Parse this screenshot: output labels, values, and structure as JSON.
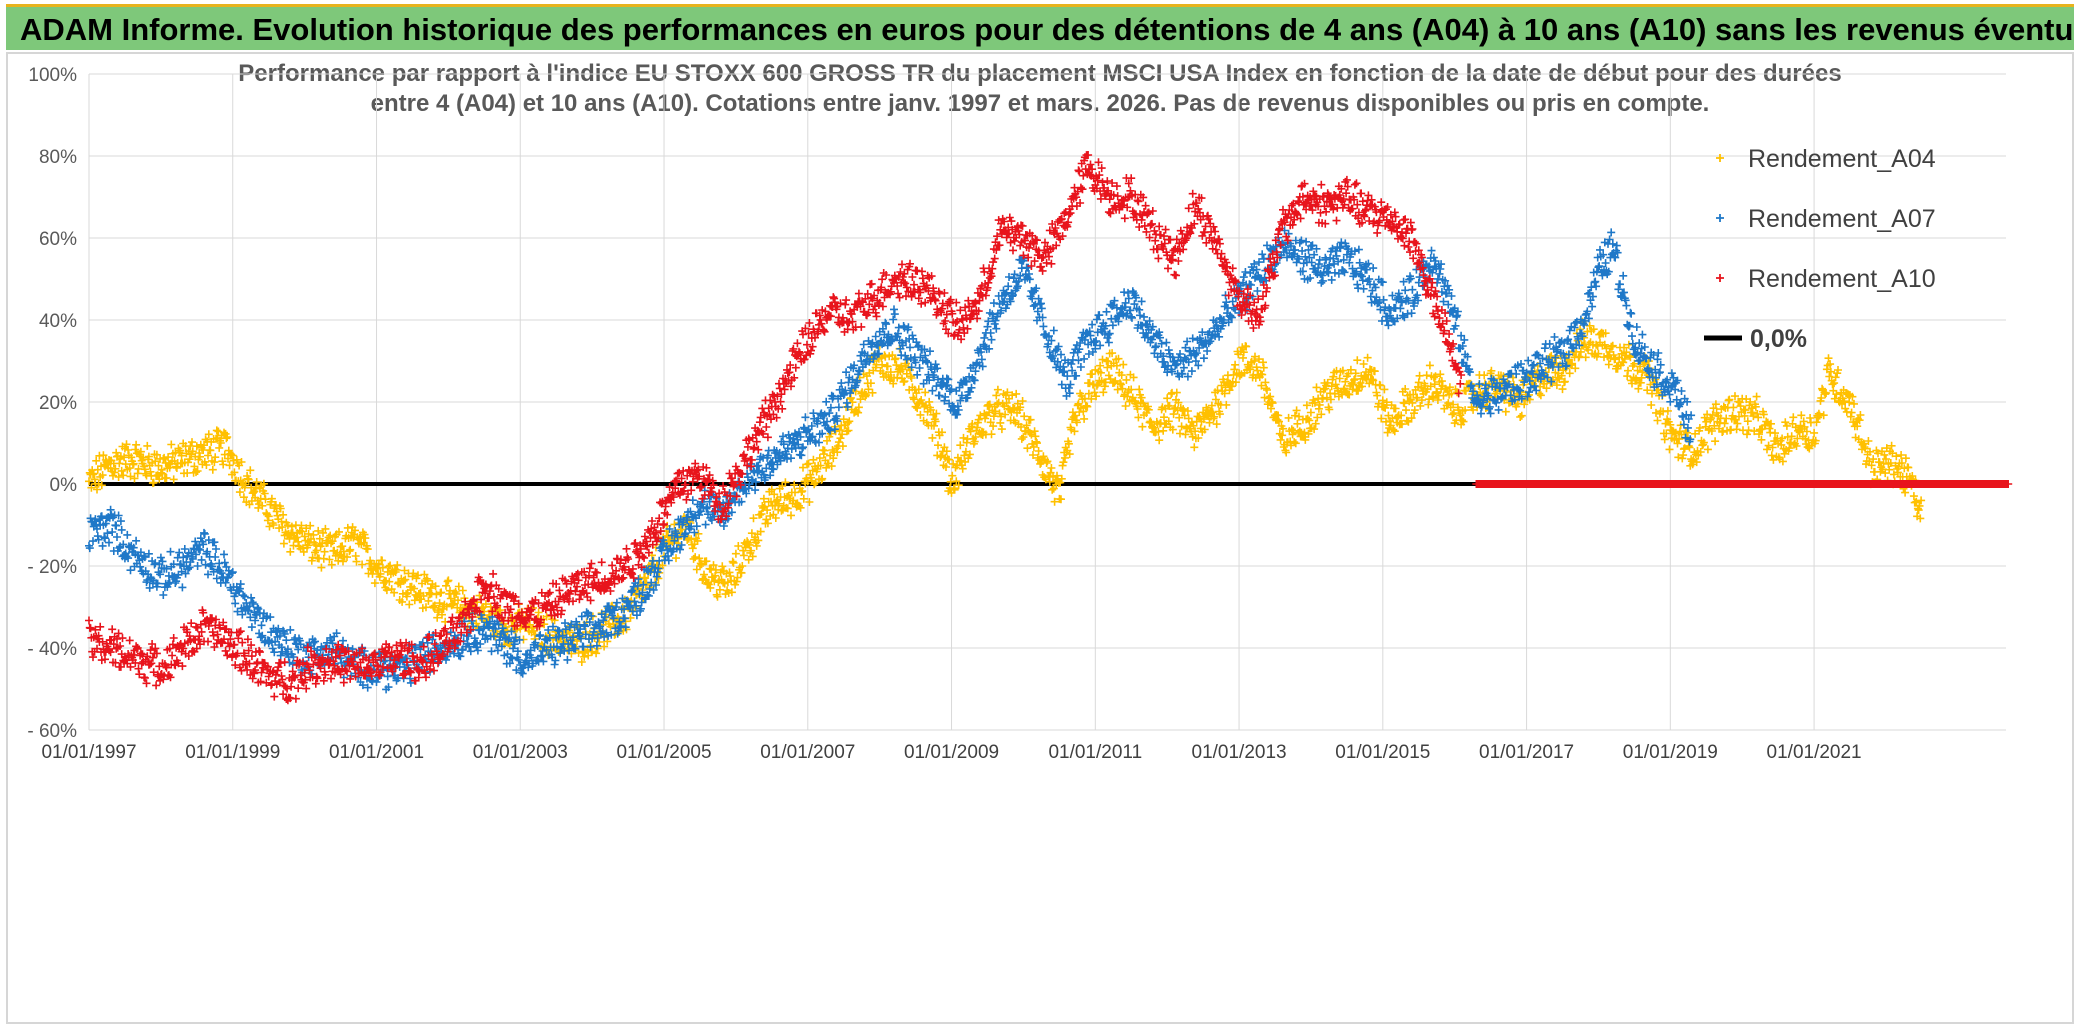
{
  "banner": {
    "title": "ADAM Informe. Evolution historique des performances en euros pour des détentions de 4 ans (A04) à 10 ans (A10) sans les revenus éventuels"
  },
  "colors": {
    "banner_bg": "#7ec87a",
    "a04": "#ffc000",
    "a07": "#1f78c8",
    "a10": "#e8141c",
    "zero": "#000000",
    "grid": "#d9d9d9"
  },
  "chart_data": {
    "type": "scatter",
    "title_lines": [
      "Performance par rapport à l'indice EU STOXX 600 GROSS TR  du placement MSCI USA Index en fonction de la date de début pour des durées",
      "entre 4 (A04) et 10 ans (A10). Cotations entre janv. 1997 et mars. 2026. Pas de revenus disponibles ou pris en compte."
    ],
    "xlim": [
      "1997-01-01",
      "2023-09-01"
    ],
    "ylim": [
      -60,
      100
    ],
    "y_ticks": [
      "- 60%",
      "- 40%",
      "- 20%",
      "0%",
      "20%",
      "40%",
      "60%",
      "80%",
      "100%"
    ],
    "y_tick_values": [
      -60,
      -40,
      -20,
      0,
      20,
      40,
      60,
      80,
      100
    ],
    "x_ticks": [
      "01/01/1997",
      "01/01/1999",
      "01/01/2001",
      "01/01/2003",
      "01/01/2005",
      "01/01/2007",
      "01/01/2009",
      "01/01/2011",
      "01/01/2013",
      "01/01/2015",
      "01/01/2017",
      "01/01/2019",
      "01/01/2021"
    ],
    "x_tick_years": [
      1997,
      1999,
      2001,
      2003,
      2005,
      2007,
      2009,
      2011,
      2013,
      2015,
      2017,
      2019,
      2021
    ],
    "grid": true,
    "legend_position": "top-right",
    "series": [
      {
        "name": "Rendement_A04",
        "marker": "+",
        "color_key": "a04",
        "x": [
          1997.0,
          1997.3,
          1997.6,
          1998.0,
          1998.5,
          1998.9,
          1999.2,
          1999.5,
          1999.8,
          2000.1,
          2000.4,
          2000.7,
          2001.0,
          2001.3,
          2001.6,
          2001.9,
          2002.2,
          2002.5,
          2002.8,
          2003.1,
          2003.4,
          2003.8,
          2004.1,
          2004.4,
          2004.7,
          2005.0,
          2005.3,
          2005.6,
          2005.9,
          2006.2,
          2006.5,
          2006.8,
          2007.1,
          2007.4,
          2007.7,
          2008.0,
          2008.3,
          2008.6,
          2008.9,
          2009.0,
          2009.3,
          2009.6,
          2009.9,
          2010.2,
          2010.5,
          2010.7,
          2010.9,
          2011.2,
          2011.5,
          2011.8,
          2012.1,
          2012.4,
          2012.7,
          2013.0,
          2013.3,
          2013.6,
          2013.9,
          2014.2,
          2014.5,
          2014.8,
          2015.1,
          2015.4,
          2015.7,
          2016.0,
          2016.3,
          2016.6,
          2016.9,
          2017.2,
          2017.5,
          2017.8,
          2018.1,
          2018.4,
          2018.7,
          2019.0,
          2019.3,
          2019.6,
          2019.9,
          2020.2,
          2020.5,
          2020.8,
          2021.0,
          2021.2,
          2021.5,
          2021.8,
          2022.1,
          2022.3,
          2022.5
        ],
        "y": [
          0,
          5,
          6,
          4,
          7,
          9,
          0,
          -6,
          -12,
          -15,
          -17,
          -14,
          -20,
          -23,
          -26,
          -28,
          -30,
          -32,
          -35,
          -34,
          -37,
          -39,
          -36,
          -33,
          -26,
          -16,
          -10,
          -22,
          -25,
          -14,
          -5,
          -3,
          2,
          10,
          22,
          30,
          28,
          20,
          8,
          0,
          12,
          18,
          18,
          8,
          -3,
          15,
          22,
          28,
          22,
          14,
          18,
          12,
          20,
          30,
          28,
          10,
          15,
          22,
          25,
          28,
          15,
          20,
          25,
          18,
          22,
          24,
          20,
          26,
          28,
          35,
          34,
          30,
          26,
          12,
          8,
          15,
          18,
          16,
          8,
          14,
          12,
          27,
          20,
          4,
          5,
          2,
          -8
        ]
      },
      {
        "name": "Rendement_A07",
        "marker": "+",
        "color_key": "a07",
        "x": [
          1997.0,
          1997.3,
          1997.6,
          1998.0,
          1998.3,
          1998.6,
          1998.9,
          1999.2,
          1999.5,
          1999.8,
          2000.1,
          2000.4,
          2000.7,
          2001.0,
          2001.3,
          2001.6,
          2001.9,
          2002.2,
          2002.5,
          2002.8,
          2003.1,
          2003.4,
          2003.7,
          2004.0,
          2004.3,
          2004.6,
          2004.9,
          2005.2,
          2005.5,
          2005.8,
          2006.1,
          2006.4,
          2006.7,
          2007.0,
          2007.3,
          2007.6,
          2007.9,
          2008.2,
          2008.5,
          2008.8,
          2009.1,
          2009.4,
          2009.7,
          2010.0,
          2010.3,
          2010.6,
          2010.9,
          2011.2,
          2011.5,
          2011.8,
          2012.1,
          2012.4,
          2012.7,
          2013.0,
          2013.3,
          2013.6,
          2013.9,
          2014.2,
          2014.5,
          2014.8,
          2015.1,
          2015.4,
          2015.7,
          2016.0,
          2016.3,
          2016.6,
          2016.9,
          2017.2,
          2017.5,
          2017.8,
          2018.0,
          2018.2,
          2018.5,
          2018.8,
          2019.1,
          2019.3
        ],
        "y": [
          -12,
          -10,
          -17,
          -23,
          -20,
          -16,
          -22,
          -30,
          -36,
          -40,
          -42,
          -40,
          -45,
          -44,
          -46,
          -42,
          -40,
          -37,
          -35,
          -39,
          -43,
          -40,
          -38,
          -36,
          -33,
          -28,
          -20,
          -12,
          -5,
          -8,
          0,
          5,
          8,
          12,
          16,
          25,
          35,
          38,
          32,
          25,
          20,
          32,
          45,
          52,
          38,
          25,
          35,
          40,
          45,
          35,
          28,
          32,
          38,
          45,
          52,
          58,
          55,
          52,
          55,
          50,
          42,
          46,
          56,
          40,
          20,
          22,
          25,
          28,
          32,
          40,
          52,
          58,
          35,
          28,
          22,
          12
        ]
      },
      {
        "name": "Rendement_A10",
        "marker": "+",
        "color_key": "a10",
        "x": [
          1997.0,
          1997.3,
          1997.6,
          1998.0,
          1998.3,
          1998.6,
          1998.9,
          1999.2,
          1999.5,
          1999.8,
          2000.1,
          2000.4,
          2000.7,
          2001.0,
          2001.3,
          2001.6,
          2001.9,
          2002.2,
          2002.5,
          2002.8,
          2003.1,
          2003.4,
          2003.7,
          2004.0,
          2004.3,
          2004.6,
          2004.9,
          2005.2,
          2005.5,
          2005.8,
          2006.1,
          2006.4,
          2006.7,
          2007.0,
          2007.3,
          2007.6,
          2007.9,
          2008.2,
          2008.5,
          2008.8,
          2009.1,
          2009.4,
          2009.7,
          2010.0,
          2010.3,
          2010.6,
          2010.9,
          2011.2,
          2011.5,
          2011.8,
          2012.1,
          2012.4,
          2012.7,
          2013.0,
          2013.3,
          2013.6,
          2013.9,
          2014.2,
          2014.5,
          2014.8,
          2015.1,
          2015.4,
          2015.7,
          2015.9,
          2016.1
        ],
        "y": [
          -38,
          -40,
          -42,
          -45,
          -40,
          -35,
          -38,
          -42,
          -47,
          -48,
          -44,
          -43,
          -45,
          -44,
          -42,
          -44,
          -40,
          -35,
          -24,
          -30,
          -32,
          -30,
          -26,
          -24,
          -22,
          -18,
          -10,
          0,
          2,
          -5,
          5,
          15,
          25,
          35,
          42,
          40,
          45,
          50,
          50,
          45,
          38,
          45,
          62,
          60,
          55,
          65,
          78,
          70,
          70,
          62,
          55,
          68,
          58,
          45,
          42,
          62,
          70,
          68,
          70,
          66,
          65,
          60,
          45,
          35,
          24
        ]
      },
      {
        "name": "0,0%",
        "marker": "line",
        "color_key": "zero",
        "x": [
          1997.0,
          2023.7
        ],
        "y": [
          0,
          0
        ]
      }
    ],
    "flat_zero_red": {
      "x_start": 2016.3,
      "x_end": 2023.7,
      "y": 0
    }
  }
}
